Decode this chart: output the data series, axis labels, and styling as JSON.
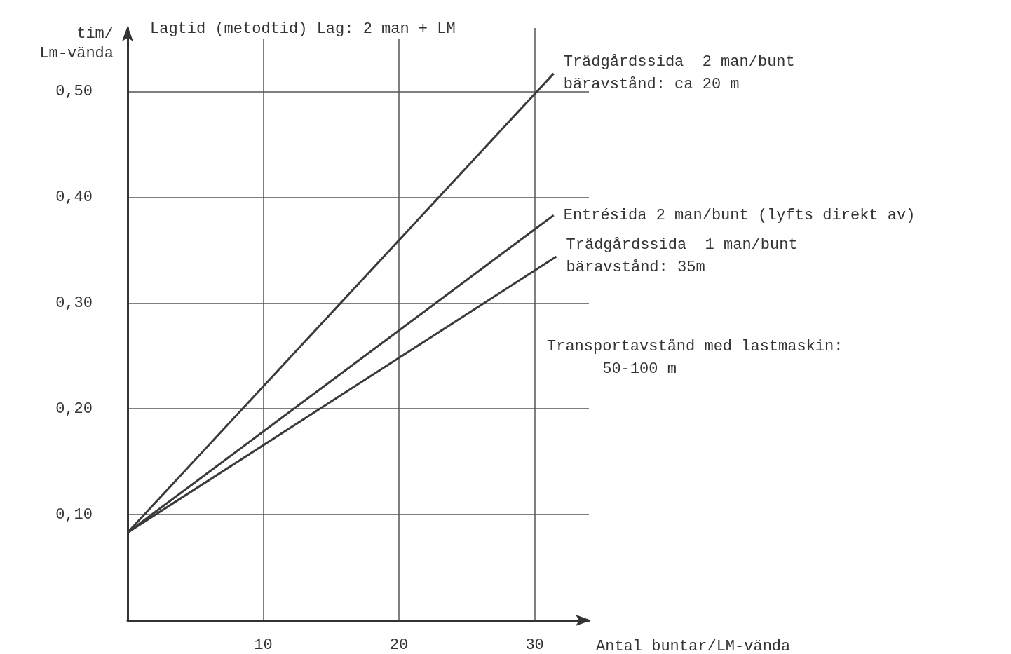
{
  "chart_data": {
    "type": "line",
    "title": "Lagtid (metodtid) Lag: 2 man + LM",
    "xlabel": "Antal buntar/LM-vända",
    "ylabel": "tim/\nLm-vända",
    "xlim": [
      0,
      34
    ],
    "xticks": [
      10,
      20,
      30
    ],
    "ylim": [
      0,
      0.56
    ],
    "yticks": [
      {
        "value": 0.1,
        "label": "0,10"
      },
      {
        "value": 0.2,
        "label": "0,20"
      },
      {
        "value": 0.3,
        "label": "0,30"
      },
      {
        "value": 0.4,
        "label": "0,40"
      },
      {
        "value": 0.5,
        "label": "0,50"
      }
    ],
    "grid": true,
    "marker": "none",
    "line_style": "solid",
    "series": [
      {
        "name": "Trädgårdssida  2 man/bunt\nbäravstånd: ca 20 m",
        "color": "#3a3a3a",
        "x": [
          0,
          31.4
        ],
        "values": [
          0.083,
          0.517
        ]
      },
      {
        "name": "Entrésida 2 man/bunt (lyfts direkt av)",
        "color": "#3a3a3a",
        "x": [
          0,
          31.4
        ],
        "values": [
          0.083,
          0.383
        ]
      },
      {
        "name": "Trädgårdssida  1 man/bunt\nbäravstånd: 35m",
        "color": "#3a3a3a",
        "x": [
          0,
          31.6
        ],
        "values": [
          0.083,
          0.344
        ]
      }
    ],
    "annotations": [
      "Transportavstånd med lastmaskin:\n      50-100 m"
    ]
  }
}
